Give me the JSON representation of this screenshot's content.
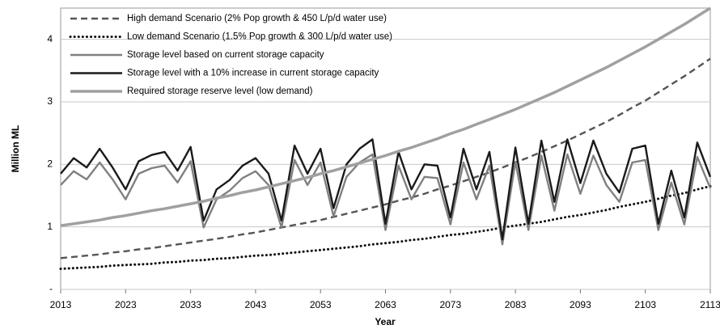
{
  "chart_data": {
    "type": "line",
    "x_label": "Year",
    "y_label": "Million ML",
    "x": [
      2013,
      2015,
      2017,
      2019,
      2021,
      2023,
      2025,
      2027,
      2029,
      2031,
      2033,
      2035,
      2037,
      2039,
      2041,
      2043,
      2045,
      2047,
      2049,
      2051,
      2053,
      2055,
      2057,
      2059,
      2061,
      2063,
      2065,
      2067,
      2069,
      2071,
      2073,
      2075,
      2077,
      2079,
      2081,
      2083,
      2085,
      2087,
      2089,
      2091,
      2093,
      2095,
      2097,
      2099,
      2101,
      2103,
      2105,
      2107,
      2109,
      2111,
      2113
    ],
    "series": [
      {
        "name": "High demand Scenario (2% Pop growth &  450 L/p/d water use)",
        "color": "#555555",
        "dash": "dashed",
        "values": [
          0.5,
          0.52,
          0.54,
          0.56,
          0.59,
          0.61,
          0.64,
          0.66,
          0.69,
          0.72,
          0.75,
          0.78,
          0.81,
          0.84,
          0.88,
          0.91,
          0.95,
          0.99,
          1.03,
          1.07,
          1.11,
          1.16,
          1.21,
          1.26,
          1.31,
          1.36,
          1.42,
          1.47,
          1.53,
          1.6,
          1.66,
          1.73,
          1.8,
          1.87,
          1.95,
          2.03,
          2.11,
          2.2,
          2.29,
          2.38,
          2.48,
          2.58,
          2.68,
          2.79,
          2.91,
          3.02,
          3.15,
          3.28,
          3.41,
          3.55,
          3.69
        ]
      },
      {
        "name": "Low demand Scenario (1.5% Pop growth &  300 L/p/d water use)",
        "color": "#111111",
        "dash": "dotted",
        "values": [
          0.33,
          0.34,
          0.35,
          0.36,
          0.38,
          0.39,
          0.4,
          0.41,
          0.43,
          0.44,
          0.46,
          0.47,
          0.49,
          0.5,
          0.52,
          0.54,
          0.55,
          0.57,
          0.59,
          0.61,
          0.63,
          0.65,
          0.67,
          0.69,
          0.72,
          0.74,
          0.76,
          0.79,
          0.81,
          0.84,
          0.87,
          0.89,
          0.92,
          0.95,
          0.99,
          1.02,
          1.05,
          1.08,
          1.12,
          1.16,
          1.19,
          1.23,
          1.27,
          1.32,
          1.36,
          1.4,
          1.45,
          1.5,
          1.54,
          1.6,
          1.65
        ]
      },
      {
        "name": "Storage level based on current storage capacity",
        "color": "#808080",
        "dash": "solid",
        "values": [
          1.67,
          1.89,
          1.76,
          2.03,
          1.76,
          1.44,
          1.85,
          1.94,
          1.98,
          1.71,
          2.05,
          0.99,
          1.44,
          1.58,
          1.78,
          1.89,
          1.67,
          0.99,
          2.07,
          1.67,
          2.03,
          1.17,
          1.8,
          2.03,
          2.16,
          0.95,
          1.98,
          1.44,
          1.8,
          1.78,
          1.04,
          2.03,
          1.44,
          1.98,
          0.72,
          2.04,
          0.95,
          2.14,
          1.26,
          2.16,
          1.53,
          2.14,
          1.67,
          1.4,
          2.03,
          2.07,
          0.95,
          1.71,
          1.04,
          2.12,
          1.62
        ]
      },
      {
        "name": "Storage level with a 10% increase in current storage capacity",
        "color": "#1a1a1a",
        "dash": "solid",
        "values": [
          1.85,
          2.1,
          1.95,
          2.25,
          1.95,
          1.6,
          2.05,
          2.15,
          2.2,
          1.9,
          2.28,
          1.1,
          1.6,
          1.75,
          1.98,
          2.1,
          1.85,
          1.1,
          2.3,
          1.85,
          2.25,
          1.3,
          2.0,
          2.25,
          2.4,
          1.05,
          2.2,
          1.6,
          2.0,
          1.98,
          1.15,
          2.25,
          1.6,
          2.2,
          0.8,
          2.27,
          1.05,
          2.38,
          1.4,
          2.4,
          1.7,
          2.38,
          1.85,
          1.55,
          2.25,
          2.3,
          1.05,
          1.9,
          1.15,
          2.35,
          1.8
        ]
      },
      {
        "name": "Required storage reserve level (low demand)",
        "color": "#a0a0a0",
        "dash": "thick",
        "values": [
          1.02,
          1.05,
          1.08,
          1.11,
          1.15,
          1.18,
          1.22,
          1.26,
          1.29,
          1.33,
          1.37,
          1.41,
          1.46,
          1.5,
          1.55,
          1.59,
          1.64,
          1.69,
          1.74,
          1.79,
          1.85,
          1.9,
          1.96,
          2.02,
          2.08,
          2.14,
          2.21,
          2.27,
          2.34,
          2.41,
          2.49,
          2.56,
          2.64,
          2.72,
          2.8,
          2.88,
          2.97,
          3.06,
          3.15,
          3.25,
          3.35,
          3.45,
          3.55,
          3.66,
          3.77,
          3.88,
          4.0,
          4.12,
          4.24,
          4.37,
          4.5
        ]
      }
    ],
    "xlim": [
      2013,
      2113
    ],
    "xticks": [
      2013,
      2023,
      2033,
      2043,
      2053,
      2063,
      2073,
      2083,
      2093,
      2103,
      2113
    ],
    "ylim": [
      0,
      4.5
    ],
    "yticks": [
      {
        "value": 0,
        "label": "-"
      },
      1,
      2,
      3,
      4
    ],
    "grid": true,
    "legend": "upper left"
  }
}
